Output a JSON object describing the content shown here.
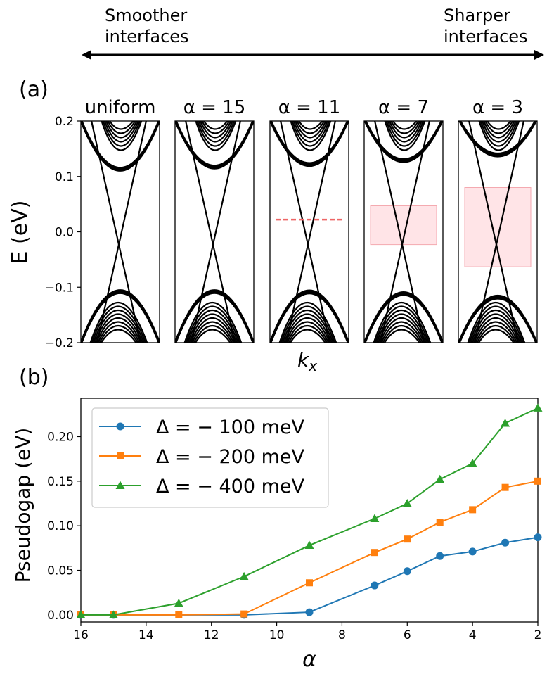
{
  "header": {
    "left_label_line1": "Smoother",
    "left_label_line2": "interfaces",
    "right_label_line1": "Sharper",
    "right_label_line2": "interfaces"
  },
  "panel_a": {
    "label": "(a)",
    "ylabel": "E (eV)",
    "xlabel": "k_x",
    "yticks": [
      "0.2",
      "0.1",
      "0.0",
      "−0.1",
      "−0.2"
    ],
    "subplot_titles": [
      "uniform",
      "α = 15",
      "α = 11",
      "α = 7",
      "α = 3"
    ]
  },
  "panel_b": {
    "label": "(b)"
  },
  "colors": {
    "series": [
      "#1f77b4",
      "#ff7f0e",
      "#2ca02c"
    ],
    "gap_fill": "#ffd6da",
    "dashed_line": "#ee6666"
  },
  "chart_data": [
    {
      "type": "line",
      "description": "Band structure E vs k_x for five interface profiles",
      "title": "",
      "xlabel": "k_x",
      "ylabel": "E (eV)",
      "ylim": [
        -0.2,
        0.2
      ],
      "yticks": [
        -0.2,
        -0.1,
        0.0,
        0.1,
        0.2
      ],
      "subplots": [
        {
          "title": "uniform",
          "alpha": null,
          "pseudogap_band_eV": null,
          "dashed_level_eV": null
        },
        {
          "title": "α = 15",
          "alpha": 15,
          "pseudogap_band_eV": null,
          "dashed_level_eV": null
        },
        {
          "title": "α = 11",
          "alpha": 11,
          "pseudogap_band_eV": null,
          "dashed_level_eV": 0.022
        },
        {
          "title": "α = 7",
          "alpha": 7,
          "pseudogap_band_eV": [
            -0.023,
            0.047
          ],
          "dashed_level_eV": null
        },
        {
          "title": "α = 3",
          "alpha": 3,
          "pseudogap_band_eV": [
            -0.063,
            0.08
          ],
          "dashed_level_eV": null
        }
      ]
    },
    {
      "type": "line",
      "title": "",
      "xlabel": "α",
      "ylabel": "Pseudogap (eV)",
      "xlim": [
        16,
        2
      ],
      "ylim": [
        -0.008,
        0.243
      ],
      "xticks": [
        16,
        14,
        12,
        10,
        8,
        6,
        4,
        2
      ],
      "yticks": [
        0.0,
        0.05,
        0.1,
        0.15,
        0.2
      ],
      "ytick_labels": [
        "0.00",
        "0.05",
        "0.10",
        "0.15",
        "0.20"
      ],
      "legend_position": "top-left",
      "series": [
        {
          "name": "Δ = − 100 meV",
          "marker": "circle",
          "x": [
            16,
            15,
            11,
            9,
            7,
            6,
            5,
            4,
            3,
            2
          ],
          "y": [
            0.0,
            0.0,
            0.0,
            0.003,
            0.033,
            0.049,
            0.066,
            0.071,
            0.081,
            0.087
          ]
        },
        {
          "name": "Δ = − 200 meV",
          "marker": "square",
          "x": [
            16,
            15,
            13,
            11,
            9,
            7,
            6,
            5,
            4,
            3,
            2
          ],
          "y": [
            0.0,
            0.0,
            0.0,
            0.001,
            0.036,
            0.07,
            0.085,
            0.104,
            0.118,
            0.143,
            0.15
          ]
        },
        {
          "name": "Δ = − 400 meV",
          "marker": "triangle",
          "x": [
            16,
            15,
            13,
            11,
            9,
            7,
            6,
            5,
            4,
            3,
            2
          ],
          "y": [
            0.0,
            0.0,
            0.013,
            0.043,
            0.078,
            0.108,
            0.125,
            0.152,
            0.17,
            0.215,
            0.232
          ]
        }
      ]
    }
  ]
}
